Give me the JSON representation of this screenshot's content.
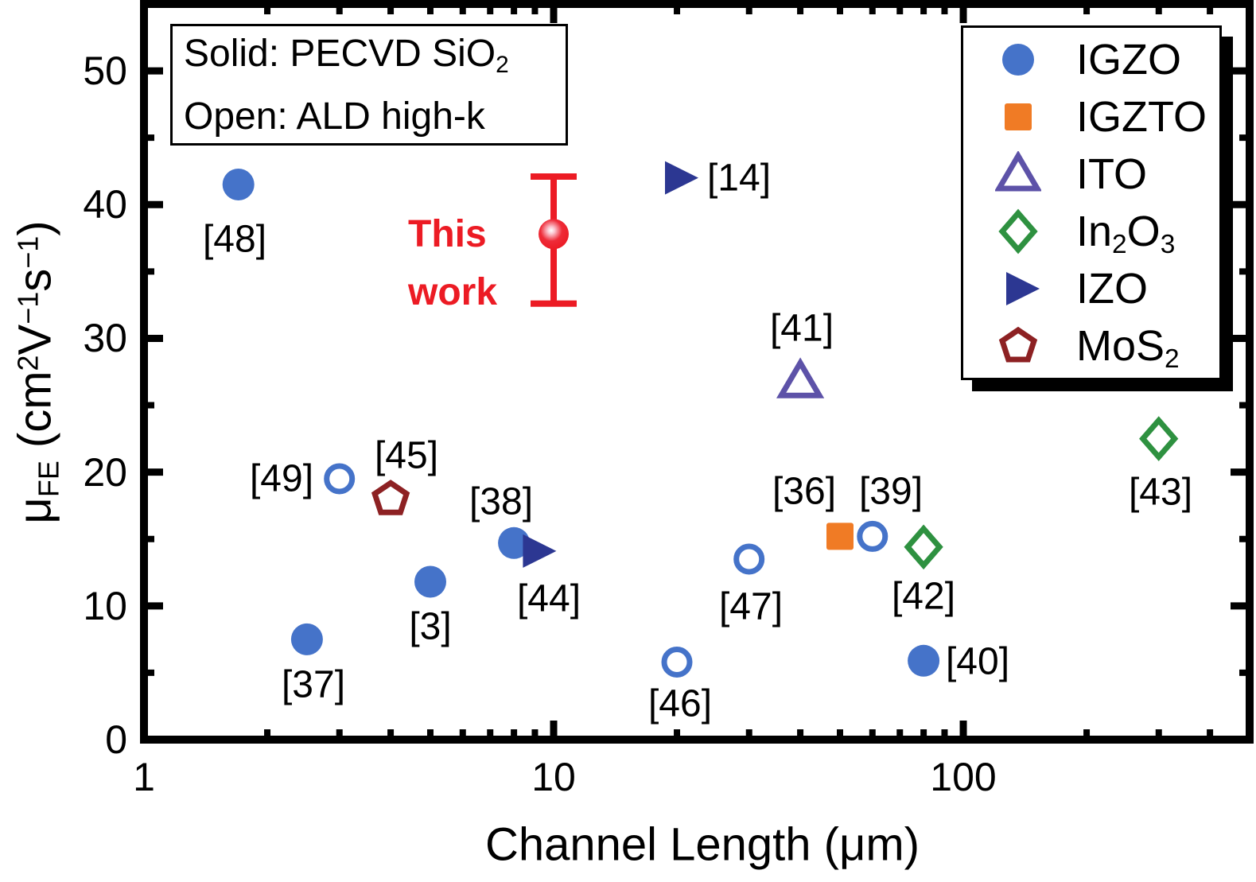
{
  "colors": {
    "background": "#ffffff",
    "frame": "#000000",
    "igzo_blue": "#4573C9",
    "igzto_orange": "#F07B25",
    "ito_purple": "#5D52A8",
    "in2o3_green": "#2E9140",
    "izo_navy": "#2C3792",
    "mos2_maroon": "#8D2123",
    "this_work_red": "#EC1B24"
  },
  "annotation_box": {
    "lines": [
      [
        {
          "t": "Solid: PECVD SiO"
        },
        {
          "t": "2",
          "sub": true
        }
      ],
      [
        {
          "t": "Open: ALD high-k"
        }
      ]
    ]
  },
  "legend": {
    "position": "top-right",
    "items": [
      {
        "id": "igzo",
        "marker": "circle",
        "filled": true,
        "color": "#4573C9",
        "label_parts": [
          {
            "t": "IGZO"
          }
        ]
      },
      {
        "id": "igzto",
        "marker": "square",
        "filled": true,
        "color": "#F07B25",
        "label_parts": [
          {
            "t": "IGZTO"
          }
        ]
      },
      {
        "id": "ito",
        "marker": "triangle-up",
        "filled": false,
        "color": "#5D52A8",
        "label_parts": [
          {
            "t": "ITO"
          }
        ]
      },
      {
        "id": "in2o3",
        "marker": "diamond",
        "filled": false,
        "color": "#2E9140",
        "label_parts": [
          {
            "t": "In"
          },
          {
            "t": "2",
            "sub": true
          },
          {
            "t": "O"
          },
          {
            "t": "3",
            "sub": true
          }
        ]
      },
      {
        "id": "izo",
        "marker": "triangle-right",
        "filled": true,
        "color": "#2C3792",
        "label_parts": [
          {
            "t": "IZO"
          }
        ]
      },
      {
        "id": "mos2",
        "marker": "pentagon",
        "filled": false,
        "color": "#8D2123",
        "label_parts": [
          {
            "t": "MoS"
          },
          {
            "t": "2",
            "sub": true
          }
        ]
      }
    ]
  },
  "chart_data": {
    "type": "scatter",
    "title": "",
    "xlabel": "Channel Length (μm)",
    "ylabel": "μFE (cm2 V−1 s−1)",
    "xlabel_parts": [
      {
        "t": "Channel Length (μm)"
      }
    ],
    "ylabel_parts": [
      {
        "t": "μ"
      },
      {
        "t": "FE",
        "sub": true
      },
      {
        "t": " (cm"
      },
      {
        "t": "2",
        "sup": true
      },
      {
        "t": "V"
      },
      {
        "t": "−1",
        "sup": true
      },
      {
        "t": "s"
      },
      {
        "t": "−1",
        "sup": true
      },
      {
        "t": ")"
      }
    ],
    "x_axis": {
      "scale": "log",
      "min": 1,
      "max": 500,
      "major_ticks": [
        {
          "value": 1,
          "label": "1"
        },
        {
          "value": 10,
          "label": "10"
        },
        {
          "value": 100,
          "label": "100"
        }
      ],
      "minor_ticks": [
        2,
        3,
        4,
        5,
        6,
        7,
        8,
        9,
        20,
        30,
        40,
        50,
        60,
        70,
        80,
        90,
        200,
        300,
        400
      ]
    },
    "y_axis": {
      "scale": "linear",
      "min": 0,
      "max": 55,
      "major_ticks": [
        {
          "value": 0,
          "label": "0"
        },
        {
          "value": 10,
          "label": "10"
        },
        {
          "value": 20,
          "label": "20"
        },
        {
          "value": 30,
          "label": "30"
        },
        {
          "value": 40,
          "label": "40"
        },
        {
          "value": 50,
          "label": "50"
        }
      ],
      "minor_ticks": [
        5,
        15,
        25,
        35,
        45,
        55
      ]
    },
    "grid": false,
    "series": [
      {
        "name": "IGZO",
        "marker": "circle",
        "color": "#4573C9",
        "points": [
          {
            "ref": "[48]",
            "x": 1.7,
            "y": 41.5,
            "filled": true,
            "label_dx": -5,
            "label_dy": 69
          },
          {
            "ref": "[37]",
            "x": 2.5,
            "y": 7.5,
            "filled": true,
            "label_dx": 8,
            "label_dy": 57
          },
          {
            "ref": "[3]",
            "x": 5,
            "y": 11.8,
            "filled": true,
            "label_dx": 0,
            "label_dy": 56
          },
          {
            "ref": "[38]",
            "x": 8,
            "y": 14.7,
            "filled": true,
            "label_dx": -16,
            "label_dy": -52
          },
          {
            "ref": "[49]",
            "x": 3,
            "y": 19.5,
            "filled": false,
            "label_dx": -73,
            "label_dy": 0
          },
          {
            "ref": "[46]",
            "x": 20,
            "y": 5.8,
            "filled": false,
            "label_dx": 4,
            "label_dy": 53
          },
          {
            "ref": "[47]",
            "x": 30,
            "y": 13.5,
            "filled": false,
            "label_dx": 2,
            "label_dy": 60
          },
          {
            "ref": "[39]",
            "x": 60,
            "y": 15.2,
            "filled": false,
            "label_dx": 23,
            "label_dy": -56
          },
          {
            "ref": "[40]",
            "x": 80,
            "y": 5.9,
            "filled": true,
            "label_dx": 68,
            "label_dy": 1
          }
        ]
      },
      {
        "name": "IGZTO",
        "marker": "square",
        "color": "#F07B25",
        "points": [
          {
            "ref": "[36]",
            "x": 50,
            "y": 15.2,
            "filled": true,
            "label_dx": -45,
            "label_dy": -56
          }
        ]
      },
      {
        "name": "ITO",
        "marker": "triangle-up",
        "color": "#5D52A8",
        "points": [
          {
            "ref": "[41]",
            "x": 40,
            "y": 26.8,
            "filled": false,
            "label_dx": 2,
            "label_dy": -66
          }
        ]
      },
      {
        "name": "In2O3",
        "marker": "diamond",
        "color": "#2E9140",
        "points": [
          {
            "ref": "[42]",
            "x": 80,
            "y": 14.4,
            "filled": false,
            "label_dx": 0,
            "label_dy": 62
          },
          {
            "ref": "[43]",
            "x": 300,
            "y": 22.5,
            "filled": false,
            "label_dx": 2,
            "label_dy": 67
          }
        ]
      },
      {
        "name": "IZO",
        "marker": "triangle-right",
        "color": "#2C3792",
        "points": [
          {
            "ref": "[44]",
            "x": 9,
            "y": 14.1,
            "filled": true,
            "label_dx": 18,
            "label_dy": 60
          },
          {
            "ref": "[14]",
            "x": 20,
            "y": 42,
            "filled": true,
            "label_dx": 78,
            "label_dy": 0
          }
        ]
      },
      {
        "name": "MoS2",
        "marker": "pentagon",
        "color": "#8D2123",
        "points": [
          {
            "ref": "[45]",
            "x": 4,
            "y": 18,
            "filled": false,
            "label_dx": 20,
            "label_dy": -54
          }
        ]
      }
    ],
    "this_work": {
      "label_lines": [
        "This",
        "work"
      ],
      "x": 10,
      "y": 37.8,
      "error_plus": 4.3,
      "error_minus": 5.2,
      "color": "#EC1B24"
    }
  }
}
